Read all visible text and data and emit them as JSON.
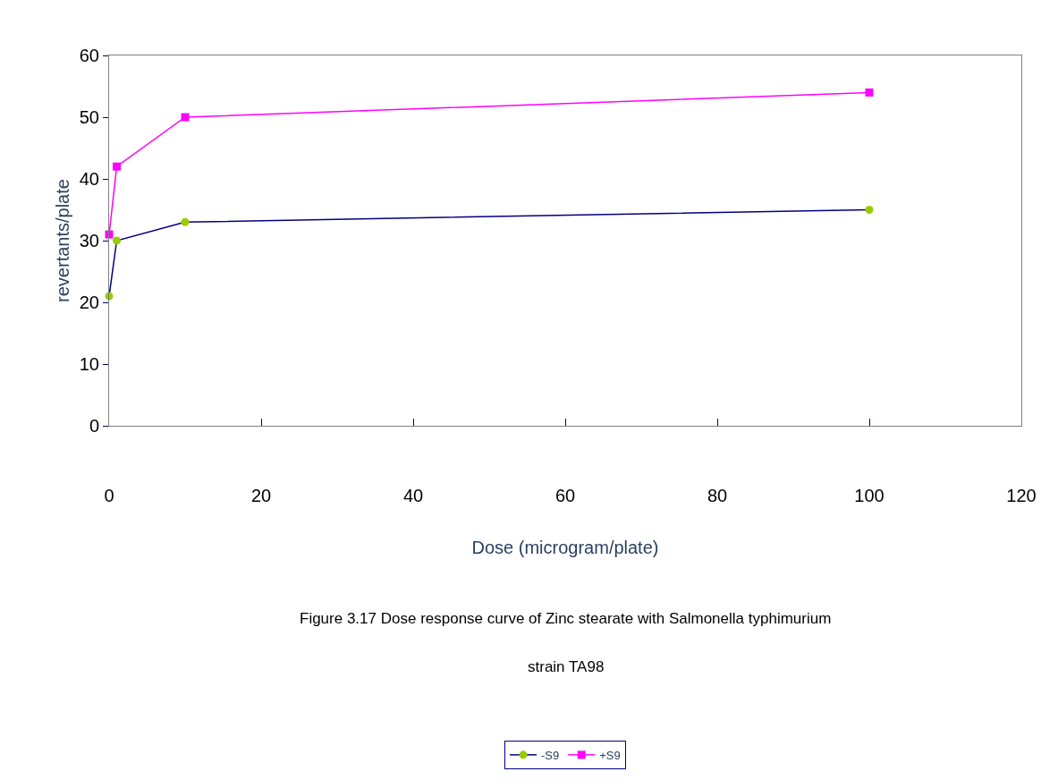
{
  "chart_data": {
    "type": "line",
    "xlabel": "Dose (microgram/plate)",
    "ylabel": "revertants/plate",
    "x": [
      0,
      1,
      10,
      100
    ],
    "series": [
      {
        "name": "-S9",
        "color": "#000080",
        "colors": [
          "#99cc00",
          "#99cc00",
          "#99cc00",
          "#99cc00"
        ],
        "marker": "circle",
        "values": [
          21,
          30,
          33,
          35
        ]
      },
      {
        "name": "+S9",
        "color": "#ff00ff",
        "colors": [
          "#ff00ff",
          "#ff00ff",
          "#ff00ff",
          "#ff00ff"
        ],
        "marker": "square",
        "values": [
          31,
          42,
          50,
          54
        ]
      }
    ],
    "xlim": [
      0,
      120
    ],
    "xticks": [
      0,
      20,
      40,
      60,
      80,
      100,
      120
    ],
    "ylim": [
      0,
      60
    ],
    "yticks": [
      0,
      10,
      20,
      30,
      40,
      50,
      60
    ],
    "legend": "bottom",
    "line_style": "solid",
    "annotations": [
      "Figure 3.17 Dose response curve of Zinc stearate with Salmonella typhimurium",
      "strain TA98"
    ]
  }
}
